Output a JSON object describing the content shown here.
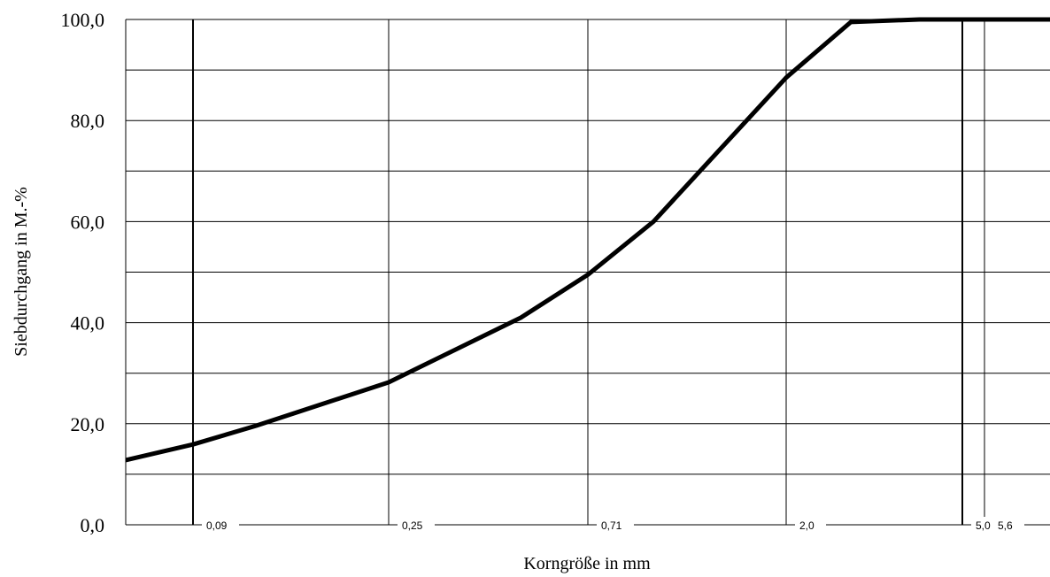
{
  "chart_data": {
    "type": "line",
    "title": "",
    "xlabel": "Korngröße in mm",
    "ylabel": "Siebdurchgang in M.-%",
    "x_scale": "log",
    "ylim": [
      0,
      100
    ],
    "y_ticks": [
      "0,0",
      "20,0",
      "40,0",
      "60,0",
      "80,0",
      "100,0"
    ],
    "y_tick_values": [
      0,
      20,
      40,
      60,
      80,
      100
    ],
    "y_minor_gridlines": [
      10,
      30,
      50,
      70,
      90
    ],
    "x_ticks": [
      {
        "label": "0,09",
        "value": 0.09,
        "heavy": true
      },
      {
        "label": "0,25",
        "value": 0.25,
        "heavy": false
      },
      {
        "label": "0,71",
        "value": 0.71,
        "heavy": false
      },
      {
        "label": "2,0",
        "value": 2.0,
        "heavy": false
      },
      {
        "label": "5,0",
        "value": 5.0,
        "heavy": true
      },
      {
        "label": "5,6",
        "value": 5.6,
        "heavy": false
      }
    ],
    "grid": true,
    "series": [
      {
        "name": "",
        "color": "#000000",
        "points": [
          {
            "x": 0.063,
            "y": 12.8
          },
          {
            "x": 0.09,
            "y": 15.9
          },
          {
            "x": 0.125,
            "y": 19.6
          },
          {
            "x": 0.25,
            "y": 28.2
          },
          {
            "x": 0.5,
            "y": 41.0
          },
          {
            "x": 0.71,
            "y": 49.5
          },
          {
            "x": 1.0,
            "y": 60.0
          },
          {
            "x": 2.0,
            "y": 88.5
          },
          {
            "x": 2.8,
            "y": 99.5
          },
          {
            "x": 4.0,
            "y": 100.0
          },
          {
            "x": 5.0,
            "y": 100.0
          },
          {
            "x": 8.0,
            "y": 100.0
          }
        ]
      }
    ]
  }
}
